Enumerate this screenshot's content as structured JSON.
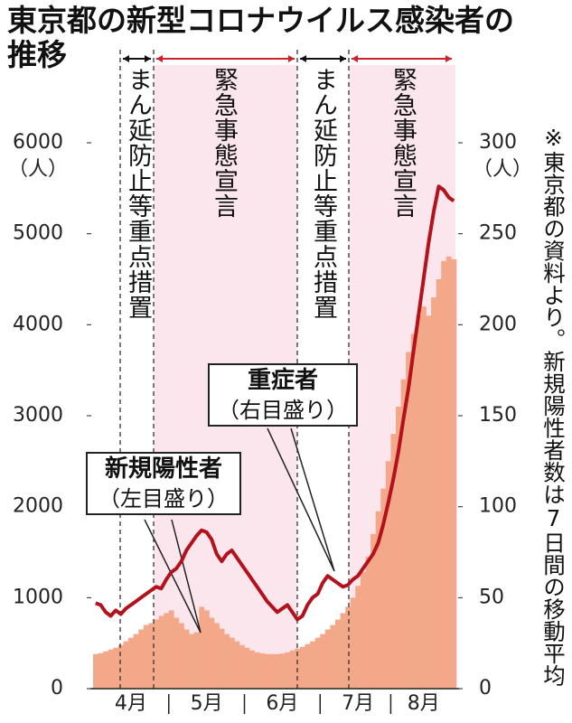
{
  "chart_data": {
    "type": "bar",
    "title": "東京都の新型コロナウイルス感染者の推移",
    "categories": [
      null,
      null,
      null,
      null,
      null,
      null,
      null,
      "4月",
      null,
      null,
      null,
      null,
      null,
      null,
      null,
      null,
      null,
      null,
      null,
      null,
      null,
      null,
      "5月",
      null,
      null,
      null,
      null,
      null,
      null,
      null,
      null,
      null,
      null,
      null,
      null,
      null,
      null,
      "6月",
      null,
      null,
      null,
      null,
      null,
      null,
      null,
      null,
      null,
      null,
      null,
      null,
      null,
      null,
      "7月",
      null,
      null,
      null,
      null,
      null,
      null,
      null,
      null,
      null,
      null,
      null,
      null,
      "8月",
      null,
      null,
      null,
      null,
      null,
      null
    ],
    "series": [
      {
        "name": "新規陽性者",
        "axis_note": "（左目盛り）",
        "type": "bar",
        "color": "#f2a889",
        "values": [
          380,
          390,
          410,
          430,
          450,
          480,
          520,
          560,
          600,
          650,
          700,
          720,
          760,
          800,
          830,
          860,
          780,
          720,
          650,
          600,
          620,
          900,
          860,
          780,
          720,
          660,
          600,
          560,
          520,
          480,
          450,
          420,
          400,
          390,
          380,
          380,
          380,
          385,
          400,
          420,
          440,
          460,
          490,
          520,
          560,
          600,
          650,
          700,
          760,
          830,
          900,
          1000,
          1130,
          1280,
          1450,
          1700,
          1950,
          2200,
          2500,
          2800,
          3100,
          3400,
          3700,
          3900,
          4100,
          4200,
          4100,
          4300,
          4500,
          4700,
          4750,
          4720
        ]
      },
      {
        "name": "重症者",
        "axis_note": "（右目盛り）",
        "type": "line",
        "axis": "y2",
        "color": "#b3111c",
        "values": [
          47,
          46,
          42,
          40,
          43,
          41,
          44,
          46,
          48,
          50,
          52,
          54,
          56,
          55,
          60,
          64,
          66,
          70,
          76,
          80,
          84,
          87,
          86,
          82,
          74,
          70,
          74,
          76,
          72,
          68,
          64,
          60,
          56,
          52,
          48,
          45,
          42,
          44,
          46,
          42,
          38,
          40,
          46,
          50,
          52,
          58,
          62,
          60,
          58,
          56,
          57,
          60,
          62,
          66,
          70,
          74,
          80,
          90,
          102,
          115,
          130,
          148,
          165,
          185,
          205,
          225,
          245,
          262,
          276,
          274,
          270,
          268
        ]
      }
    ],
    "ylim": [
      0,
      6000
    ],
    "yticks": [
      0,
      1000,
      2000,
      3000,
      4000,
      5000,
      6000
    ],
    "y_unit": "（人）",
    "y2lim": [
      0,
      300
    ],
    "y2ticks": [
      0,
      50,
      100,
      150,
      200,
      250,
      300
    ],
    "y2_unit": "（人）",
    "periods": [
      "まん延防止等重点措置",
      "緊急事態宣言",
      "まん延防止等重点措置",
      "緊急事態宣言"
    ],
    "note": "※東京都の資料より。新規陽性者数は7日間の移動平均"
  }
}
